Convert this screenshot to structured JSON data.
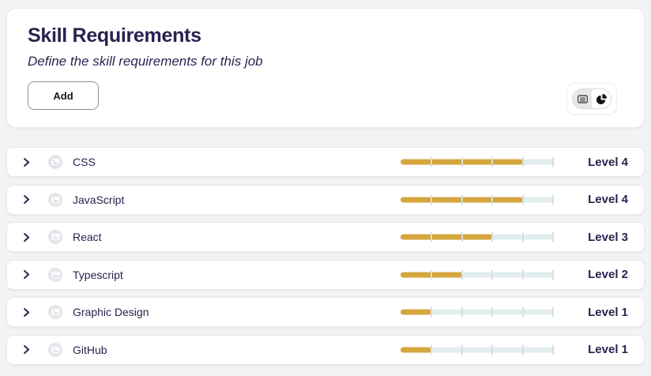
{
  "header": {
    "title": "Skill Requirements",
    "subtitle": "Define the skill requirements for this job",
    "add_button_label": "Add",
    "view_toggle": {
      "options": [
        {
          "name": "list-view",
          "icon": "list-card-icon",
          "selected": true
        },
        {
          "name": "chart-view",
          "icon": "pie-chart-icon",
          "selected": false
        }
      ]
    }
  },
  "skills": {
    "max_level": 5,
    "items": [
      {
        "name": "CSS",
        "level": 4,
        "level_label": "Level 4"
      },
      {
        "name": "JavaScript",
        "level": 4,
        "level_label": "Level 4"
      },
      {
        "name": "React",
        "level": 3,
        "level_label": "Level 3"
      },
      {
        "name": "Typescript",
        "level": 2,
        "level_label": "Level 2"
      },
      {
        "name": "Graphic Design",
        "level": 1,
        "level_label": "Level 1"
      },
      {
        "name": "GitHub",
        "level": 1,
        "level_label": "Level 1"
      }
    ]
  },
  "colors": {
    "accent_gold": "#d6a63e",
    "track": "#e2edef",
    "navy_text": "#282250",
    "page_background": "#f2f3f5"
  }
}
